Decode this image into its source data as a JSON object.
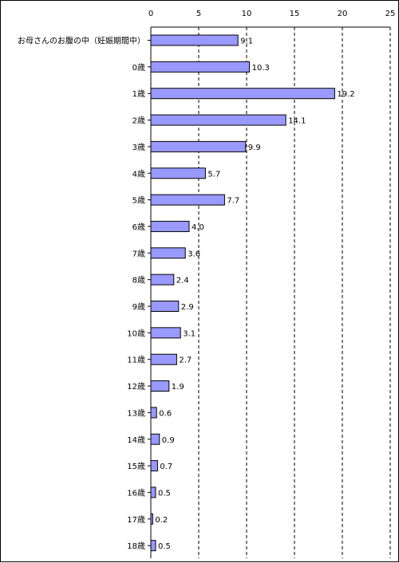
{
  "chart_data": {
    "type": "bar",
    "orientation": "horizontal",
    "categories": [
      "お母さんのお腹の中（妊娠期間中）",
      "0歳",
      "1歳",
      "2歳",
      "3歳",
      "4歳",
      "5歳",
      "6歳",
      "7歳",
      "8歳",
      "9歳",
      "10歳",
      "11歳",
      "12歳",
      "13歳",
      "14歳",
      "15歳",
      "16歳",
      "17歳",
      "18歳"
    ],
    "values": [
      9.1,
      10.3,
      19.2,
      14.1,
      9.9,
      5.7,
      7.7,
      4.0,
      3.6,
      2.4,
      2.9,
      3.1,
      2.7,
      1.9,
      0.6,
      0.9,
      0.7,
      0.5,
      0.2,
      0.5
    ],
    "value_labels": [
      "9.1",
      "10.3",
      "19.2",
      "14.1",
      "9.9",
      "5.7",
      "7.7",
      "4.0",
      "3.6",
      "2.4",
      "2.9",
      "3.1",
      "2.7",
      "1.9",
      "0.6",
      "0.9",
      "0.7",
      "0.5",
      "0.2",
      "0.5"
    ],
    "xticks": [
      "0",
      "5",
      "10",
      "15",
      "20",
      "25"
    ],
    "xlim": [
      0,
      25
    ],
    "axis_position": "top",
    "grid": "vertical-dashed",
    "legend": "none",
    "bar_color": "#9999ff",
    "bar_border_color": "#000000"
  }
}
